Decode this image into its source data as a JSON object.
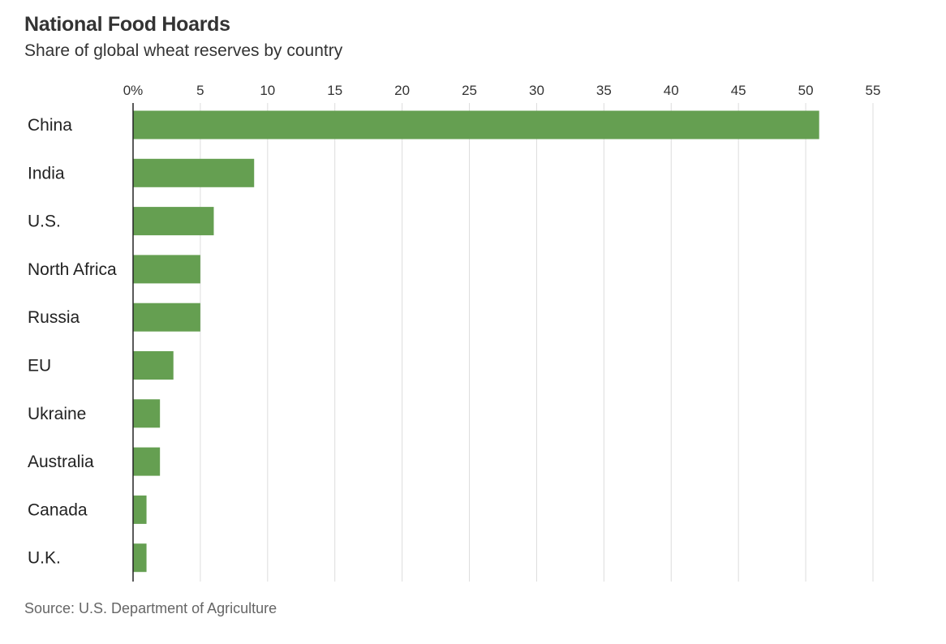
{
  "header": {
    "title": "National Food Hoards",
    "subtitle": "Share of global wheat reserves by country"
  },
  "footer": {
    "source": "Source: U.S. Department of Agriculture"
  },
  "colors": {
    "bar": "#659f51",
    "gridline": "#dddddd",
    "axis": "#222222"
  },
  "chart_data": {
    "type": "bar",
    "orientation": "horizontal",
    "title": "National Food Hoards",
    "subtitle": "Share of global wheat reserves by country",
    "xlabel": "",
    "ylabel": "",
    "unit": "%",
    "xlim": [
      0,
      55
    ],
    "ticks": [
      0,
      5,
      10,
      15,
      20,
      25,
      30,
      35,
      40,
      45,
      50,
      55
    ],
    "tick_labels": [
      "0%",
      "5",
      "10",
      "15",
      "20",
      "25",
      "30",
      "35",
      "40",
      "45",
      "50",
      "55"
    ],
    "grid": true,
    "categories": [
      "China",
      "India",
      "U.S.",
      "North Africa",
      "Russia",
      "EU",
      "Ukraine",
      "Australia",
      "Canada",
      "U.K."
    ],
    "values": [
      51,
      9,
      6,
      5,
      5,
      3,
      2,
      2,
      1,
      1
    ]
  }
}
